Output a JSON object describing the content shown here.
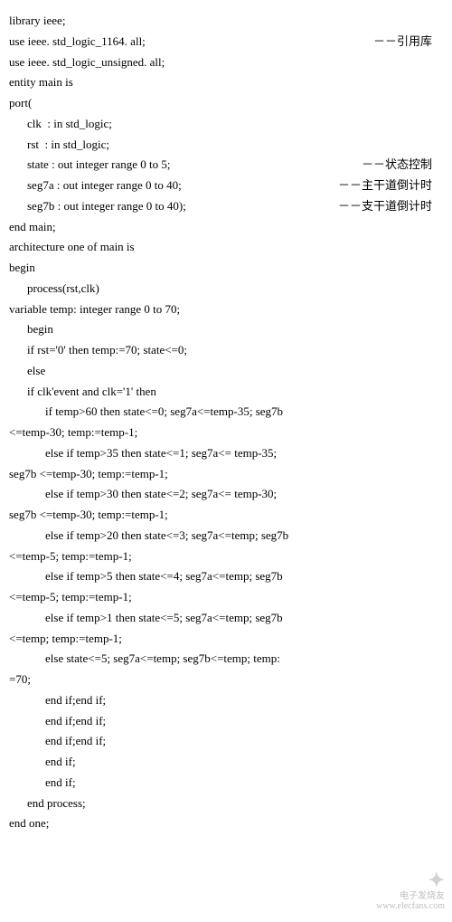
{
  "lines": [
    {
      "code": "library ieee;",
      "comment": "",
      "indent": 0
    },
    {
      "code": "use ieee. std_logic_1164. all;",
      "comment": "－－引用库",
      "indent": 0
    },
    {
      "code": "use ieee. std_logic_unsigned. all;",
      "comment": "",
      "indent": 0
    },
    {
      "code": "entity main is",
      "comment": "",
      "indent": 0
    },
    {
      "code": "port(",
      "comment": "",
      "indent": 0
    },
    {
      "code": "clk  : in std_logic;",
      "comment": "",
      "indent": 2
    },
    {
      "code": "rst  : in std_logic;",
      "comment": "",
      "indent": 2
    },
    {
      "code": "state : out integer range 0 to 5;",
      "comment": "－－状态控制",
      "indent": 2
    },
    {
      "code": "seg7a : out integer range 0 to 40;",
      "comment": "－－主干道倒计时",
      "indent": 2
    },
    {
      "code": "seg7b : out integer range 0 to 40);",
      "comment": "－－支干道倒计时",
      "indent": 2
    },
    {
      "code": "end main;",
      "comment": "",
      "indent": 0
    },
    {
      "code": "architecture one of main is",
      "comment": "",
      "indent": 0
    },
    {
      "code": "begin",
      "comment": "",
      "indent": 0
    },
    {
      "code": "process(rst,clk)",
      "comment": "",
      "indent": 2
    },
    {
      "code": "variable temp: integer range 0 to 70;",
      "comment": "",
      "indent": 0
    },
    {
      "code": "begin",
      "comment": "",
      "indent": 2
    },
    {
      "code": "if rst='0' then temp:=70; state<=0;",
      "comment": "",
      "indent": 2
    },
    {
      "code": "else",
      "comment": "",
      "indent": 2
    },
    {
      "code": "if clk'event and clk='1' then",
      "comment": "",
      "indent": 2
    },
    {
      "code": "if temp>60 then state<=0; seg7a<=temp-35; seg7b",
      "comment": "",
      "indent": 4
    },
    {
      "code": "<=temp-30; temp:=temp-1;",
      "comment": "",
      "indent": 0
    },
    {
      "code": "else if temp>35 then state<=1; seg7a<= temp-35;",
      "comment": "",
      "indent": 4
    },
    {
      "code": "seg7b <=temp-30; temp:=temp-1;",
      "comment": "",
      "indent": 0
    },
    {
      "code": "else if temp>30 then state<=2; seg7a<= temp-30;",
      "comment": "",
      "indent": 4
    },
    {
      "code": "seg7b <=temp-30; temp:=temp-1;",
      "comment": "",
      "indent": 0
    },
    {
      "code": "else if temp>20 then state<=3; seg7a<=temp; seg7b",
      "comment": "",
      "indent": 4
    },
    {
      "code": "<=temp-5; temp:=temp-1;",
      "comment": "",
      "indent": 0
    },
    {
      "code": "else if temp>5 then state<=4; seg7a<=temp; seg7b",
      "comment": "",
      "indent": 4
    },
    {
      "code": "<=temp-5; temp:=temp-1;",
      "comment": "",
      "indent": 0
    },
    {
      "code": "else if temp>1 then state<=5; seg7a<=temp; seg7b",
      "comment": "",
      "indent": 4
    },
    {
      "code": "<=temp; temp:=temp-1;",
      "comment": "",
      "indent": 0
    },
    {
      "code": "else state<=5; seg7a<=temp; seg7b<=temp; temp:",
      "comment": "",
      "indent": 4
    },
    {
      "code": "=70;",
      "comment": "",
      "indent": 0
    },
    {
      "code": "end if;end if;",
      "comment": "",
      "indent": 4
    },
    {
      "code": "end if;end if;",
      "comment": "",
      "indent": 4
    },
    {
      "code": "end if;end if;",
      "comment": "",
      "indent": 4
    },
    {
      "code": "end if;",
      "comment": "",
      "indent": 4
    },
    {
      "code": "end if;",
      "comment": "",
      "indent": 4
    },
    {
      "code": "end process;",
      "comment": "",
      "indent": 2
    },
    {
      "code": "end one;",
      "comment": "",
      "indent": 0
    }
  ],
  "watermark": {
    "brand": "电子发烧友",
    "url": "www.elecfans.com"
  }
}
